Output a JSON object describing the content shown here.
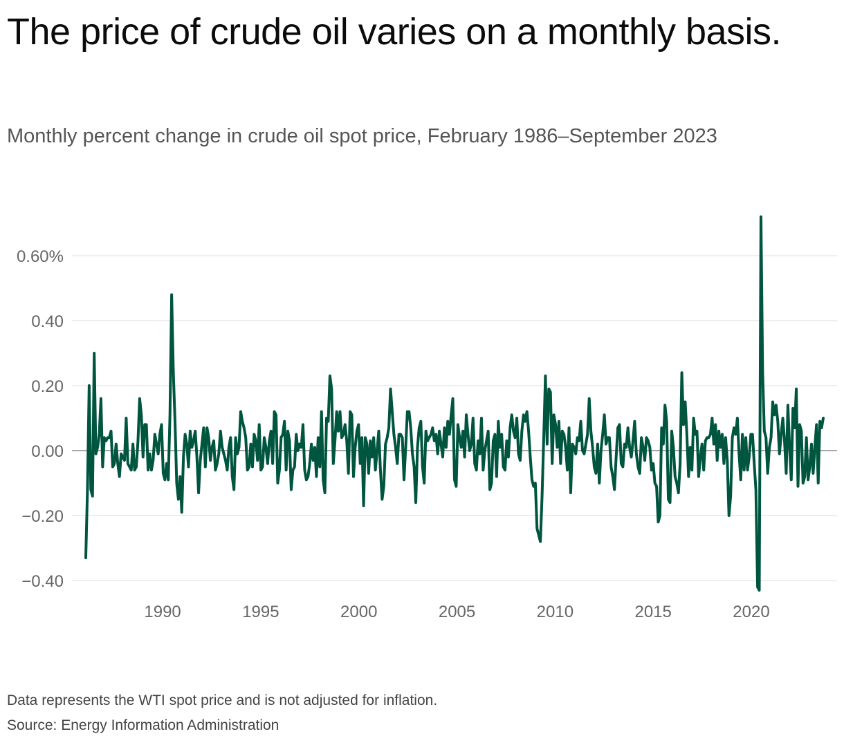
{
  "header": {
    "title": "The price of crude oil varies on a monthly basis.",
    "subtitle": "Monthly percent change in crude oil spot price, February 1986–September 2023"
  },
  "footer": {
    "note": "Data represents the WTI spot price and is not adjusted for inflation.",
    "source": "Source: Energy Information Administration"
  },
  "colors": {
    "line": "#00553f",
    "grid": "#dddddd",
    "zero": "#888888",
    "tick": "#666666"
  },
  "chart_data": {
    "type": "line",
    "x_start": "1986-02",
    "x_end": "2023-09",
    "x_ticks": [
      1990,
      1995,
      2000,
      2005,
      2010,
      2015,
      2020
    ],
    "x_tick_labels": [
      "1990",
      "1995",
      "2000",
      "2005",
      "2010",
      "2015",
      "2020"
    ],
    "y_ticks": [
      -0.4,
      -0.2,
      0,
      0.2,
      0.4,
      0.6
    ],
    "y_tick_labels": [
      "−0.40",
      "−0.20",
      "0.00",
      "0.20",
      "0.40",
      "0.60%"
    ],
    "ylim": [
      -0.44,
      0.74
    ],
    "grid": true,
    "legend": "none",
    "series": [
      {
        "values": [
          -0.33,
          -0.12,
          0.2,
          -0.12,
          -0.14,
          0.3,
          -0.01,
          0.01,
          0.05,
          0.16,
          -0.05,
          0.04,
          0.03,
          0.04,
          0.04,
          0.06,
          -0.05,
          -0.04,
          0.02,
          -0.04,
          -0.08,
          -0.01,
          -0.02,
          -0.03,
          0.1,
          -0.04,
          -0.05,
          -0.06,
          0.02,
          -0.06,
          -0.05,
          0.03,
          0.16,
          0.11,
          -0.02,
          0.08,
          0.08,
          -0.06,
          -0.01,
          -0.06,
          -0.03,
          0.05,
          0.02,
          -0.01,
          0.05,
          0.08,
          -0.07,
          -0.09,
          -0.04,
          -0.09,
          0.11,
          0.48,
          0.24,
          0.09,
          -0.1,
          -0.15,
          -0.08,
          -0.19,
          -0.02,
          0.05,
          0.02,
          -0.05,
          0.06,
          0.01,
          0.03,
          0.06,
          -0.02,
          -0.13,
          -0.03,
          0.02,
          0.07,
          -0.05,
          0.07,
          0.04,
          -0.03,
          0.01,
          0.03,
          -0.06,
          -0.04,
          -0.01,
          0.06,
          0.01,
          -0.01,
          -0.03,
          -0.06,
          0.01,
          0.04,
          -0.08,
          -0.12,
          0.04,
          -0.01,
          0.01,
          0.12,
          0.09,
          0.07,
          0.04,
          -0.06,
          -0.05,
          0.02,
          -0.05,
          0.05,
          0.03,
          -0.03,
          0.08,
          -0.06,
          -0.05,
          0.04,
          0.01,
          -0.04,
          0.03,
          0.06,
          -0.04,
          0.12,
          0.11,
          -0.1,
          -0.06,
          0.04,
          0.05,
          0.09,
          -0.06,
          0.06,
          0.03,
          -0.12,
          -0.06,
          -0.05,
          0.05,
          0.0,
          0.02,
          0.01,
          0.08,
          -0.06,
          -0.09,
          -0.08,
          -0.04,
          0.02,
          -0.03,
          0.01,
          -0.08,
          0.04,
          -0.05,
          0.12,
          -0.09,
          -0.13,
          0.1,
          0.09,
          0.23,
          0.19,
          -0.04,
          0.03,
          0.12,
          0.06,
          0.12,
          0.04,
          0.05,
          0.08,
          0.03,
          -0.07,
          0.12,
          0.11,
          -0.08,
          0.01,
          0.06,
          0.08,
          -0.04,
          0.04,
          -0.17,
          0.04,
          0.02,
          -0.07,
          0.03,
          -0.02,
          0.04,
          -0.06,
          0.0,
          0.06,
          -0.06,
          -0.15,
          -0.11,
          0.02,
          0.04,
          0.07,
          0.19,
          0.12,
          0.05,
          0.01,
          -0.04,
          0.05,
          0.05,
          0.04,
          -0.09,
          0.01,
          0.12,
          0.12,
          0.07,
          -0.01,
          -0.05,
          -0.16,
          0.01,
          0.07,
          0.09,
          -0.05,
          -0.1,
          0.06,
          0.03,
          0.04,
          0.05,
          0.07,
          0.03,
          0.05,
          -0.01,
          0.06,
          0.02,
          -0.02,
          0.07,
          0.01,
          0.09,
          0.05,
          0.11,
          0.16,
          -0.09,
          -0.11,
          0.08,
          0.04,
          0.01,
          0.06,
          -0.02,
          0.11,
          0.05,
          0.0,
          0.02,
          0.1,
          -0.04,
          -0.06,
          0.03,
          -0.01,
          0.1,
          -0.06,
          0.0,
          0.03,
          0.06,
          -0.12,
          -0.1,
          0.03,
          0.05,
          -0.08,
          0.09,
          0.01,
          0.05,
          -0.05,
          -0.06,
          0.03,
          -0.02,
          0.07,
          0.11,
          0.06,
          0.04,
          0.1,
          -0.01,
          -0.03,
          0.06,
          0.11,
          0.09,
          0.12,
          0.06,
          -0.02,
          -0.09,
          -0.11,
          -0.1,
          -0.24,
          -0.26,
          -0.28,
          -0.14,
          0.04,
          0.23,
          0.02,
          0.19,
          0.18,
          -0.04,
          0.11,
          0.08,
          0.01,
          0.09,
          -0.04,
          0.06,
          0.05,
          0.01,
          -0.06,
          0.07,
          -0.13,
          0.02,
          0.01,
          -0.01,
          0.04,
          0.03,
          0.09,
          0.0,
          -0.01,
          0.02,
          0.05,
          0.16,
          0.06,
          0.01,
          -0.05,
          -0.07,
          0.02,
          -0.1,
          0.0,
          0.05,
          0.11,
          0.02,
          0.04,
          0.04,
          -0.05,
          -0.08,
          -0.12,
          -0.02,
          0.07,
          0.08,
          -0.04,
          -0.05,
          0.02,
          0.01,
          0.07,
          0.01,
          -0.02,
          0.03,
          0.09,
          -0.01,
          -0.05,
          -0.07,
          0.04,
          0.01,
          -0.03,
          0.04,
          0.03,
          0.01,
          -0.06,
          -0.04,
          -0.1,
          -0.11,
          -0.22,
          -0.2,
          0.07,
          0.02,
          0.14,
          0.09,
          -0.15,
          -0.16,
          0.06,
          0.01,
          -0.08,
          -0.1,
          -0.13,
          -0.04,
          0.24,
          0.08,
          0.15,
          0.05,
          -0.08,
          0.01,
          -0.06,
          0.1,
          0.05,
          0.06,
          -0.08,
          -0.02,
          0.02,
          -0.06,
          0.03,
          0.04,
          0.04,
          0.05,
          0.1,
          0.02,
          0.08,
          -0.03,
          0.06,
          0.01,
          0.05,
          -0.04,
          0.04,
          -0.03,
          -0.2,
          -0.14,
          0.04,
          0.07,
          0.05,
          0.1,
          -0.01,
          -0.09,
          0.05,
          -0.06,
          0.04,
          -0.06,
          -0.02,
          0.05,
          0.05,
          -0.04,
          -0.12,
          -0.42,
          -0.43,
          0.72,
          0.24,
          0.06,
          0.04,
          -0.07,
          0.01,
          0.04,
          0.15,
          0.11,
          0.14,
          0.09,
          -0.01,
          0.05,
          0.1,
          0.03,
          -0.07,
          0.14,
          0.01,
          -0.09,
          0.13,
          0.07,
          0.19,
          -0.11,
          0.08,
          0.06,
          -0.1,
          -0.08,
          0.04,
          -0.09,
          -0.05,
          0.02,
          -0.07,
          0.01,
          0.08,
          -0.1,
          0.09,
          0.07,
          0.1
        ]
      }
    ]
  }
}
